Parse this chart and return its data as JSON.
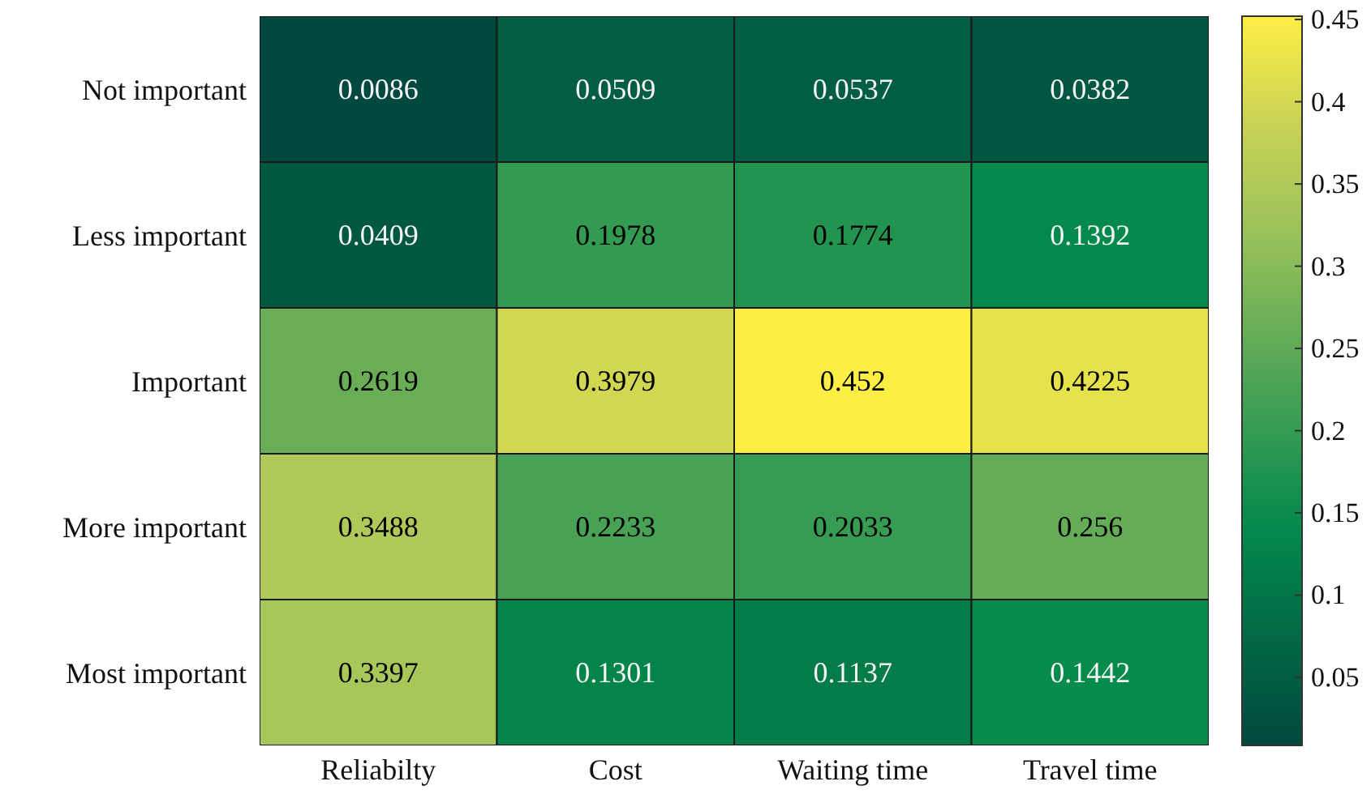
{
  "chart_data": {
    "type": "heatmap",
    "categories": [
      "Reliabilty",
      "Cost",
      "Waiting time",
      "Travel time"
    ],
    "y_categories": [
      "Not important",
      "Less important",
      "Important",
      "More important",
      "Most important"
    ],
    "cells": [
      [
        0.0086,
        0.0509,
        0.0537,
        0.0382
      ],
      [
        0.0409,
        0.1978,
        0.1774,
        0.1392
      ],
      [
        0.2619,
        0.3979,
        0.452,
        0.4225
      ],
      [
        0.3488,
        0.2233,
        0.2033,
        0.256
      ],
      [
        0.3397,
        0.1301,
        0.1137,
        0.1442
      ]
    ],
    "data_labels": true,
    "clim": [
      0.0086,
      0.452
    ],
    "cticks": [
      0.05,
      0.1,
      0.15,
      0.2,
      0.25,
      0.3,
      0.35,
      0.4,
      0.45
    ]
  }
}
